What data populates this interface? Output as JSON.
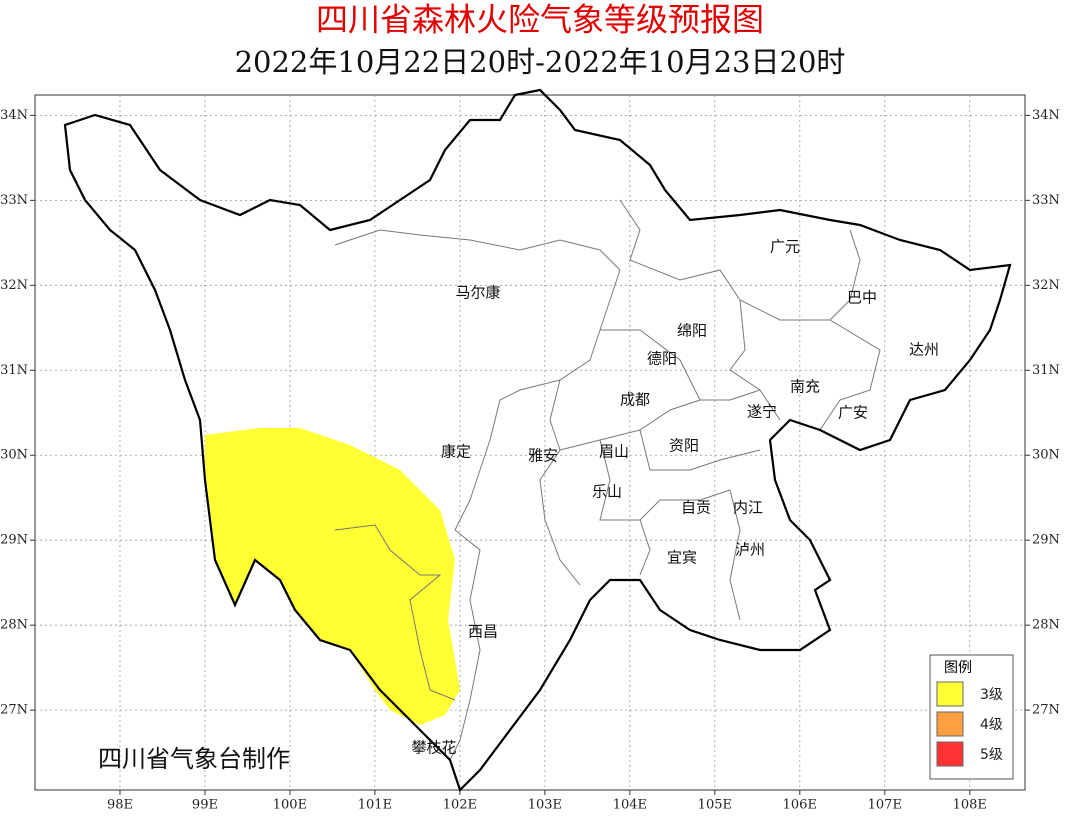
{
  "header": {
    "title": "四川省森林火险气象等级预报图",
    "subtitle": "2022年10月22日20时-2022年10月23日20时"
  },
  "map": {
    "lon_range": [
      97.0,
      108.65
    ],
    "lat_range": [
      26.06,
      34.24
    ],
    "lon_ticks": [
      {
        "value": 98,
        "label": "98E"
      },
      {
        "value": 99,
        "label": "99E"
      },
      {
        "value": 100,
        "label": "100E"
      },
      {
        "value": 101,
        "label": "101E"
      },
      {
        "value": 102,
        "label": "102E"
      },
      {
        "value": 103,
        "label": "103E"
      },
      {
        "value": 104,
        "label": "104E"
      },
      {
        "value": 105,
        "label": "105E"
      },
      {
        "value": 106,
        "label": "106E"
      },
      {
        "value": 107,
        "label": "107E"
      },
      {
        "value": 108,
        "label": "108E"
      }
    ],
    "lat_ticks": [
      {
        "value": 34,
        "label": "34N"
      },
      {
        "value": 33,
        "label": "33N"
      },
      {
        "value": 32,
        "label": "32N"
      },
      {
        "value": 31,
        "label": "31N"
      },
      {
        "value": 30,
        "label": "30N"
      },
      {
        "value": 29,
        "label": "29N"
      },
      {
        "value": 28,
        "label": "28N"
      },
      {
        "value": 27,
        "label": "27N"
      }
    ]
  },
  "cities": [
    "马尔康",
    "广元",
    "巴中",
    "绵阳",
    "达州",
    "德阳",
    "南充",
    "成都",
    "遂宁",
    "广安",
    "康定",
    "雅安",
    "眉山",
    "资阳",
    "乐山",
    "自贡",
    "内江",
    "泸州",
    "宜宾",
    "西昌",
    "攀枝花"
  ],
  "credit": "四川省气象台制作",
  "legend": {
    "title": "图例",
    "items": [
      {
        "label": "3级",
        "color": "#ffff33"
      },
      {
        "label": "4级",
        "color": "#ffa040"
      },
      {
        "label": "5级",
        "color": "#ff3333"
      }
    ]
  }
}
